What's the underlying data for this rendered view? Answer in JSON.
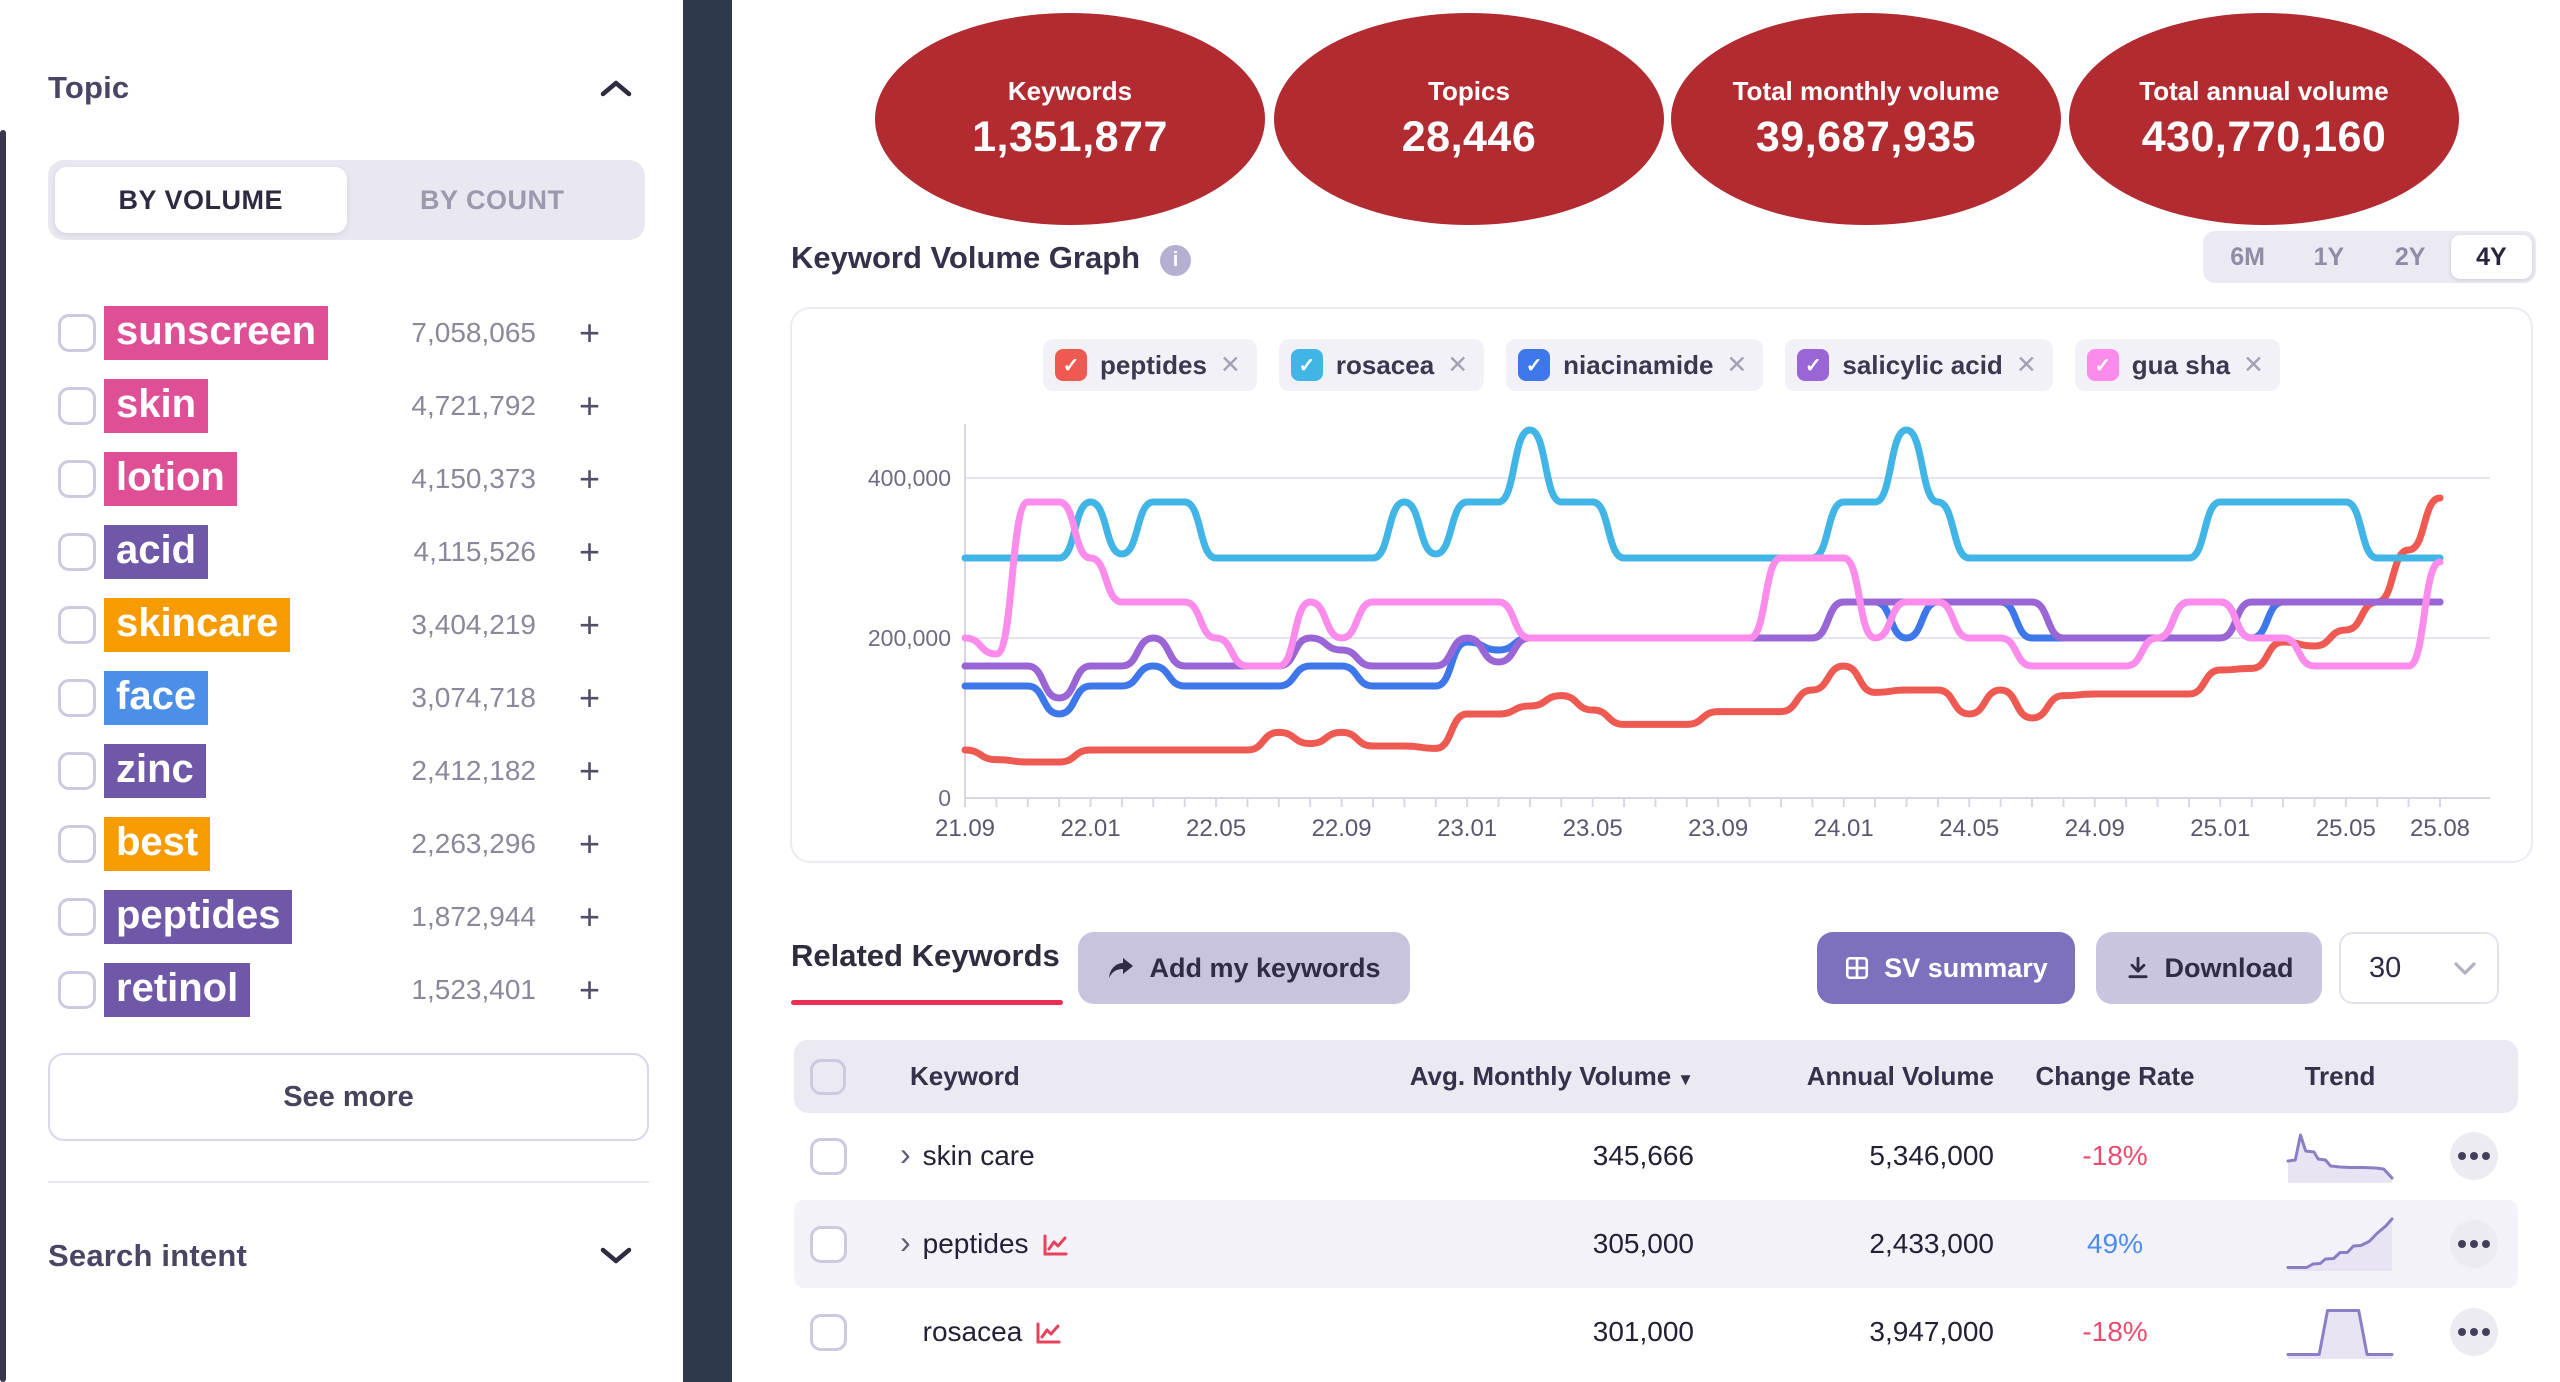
{
  "icons": {
    "check": "✓",
    "close": "✕",
    "plus": "+",
    "sort_desc": "▼",
    "chevron_right": "›",
    "info": "i"
  },
  "sidebar": {
    "topic_title": "Topic",
    "tabs": {
      "by_volume": "BY VOLUME",
      "by_count": "BY COUNT"
    },
    "topics": [
      {
        "label": "sunscreen",
        "value": "7,058,065",
        "color": "#de4f96"
      },
      {
        "label": "skin",
        "value": "4,721,792",
        "color": "#de4f96"
      },
      {
        "label": "lotion",
        "value": "4,150,373",
        "color": "#de4f96"
      },
      {
        "label": "acid",
        "value": "4,115,526",
        "color": "#6f58a8"
      },
      {
        "label": "skincare",
        "value": "3,404,219",
        "color": "#f69c00"
      },
      {
        "label": "face",
        "value": "3,074,718",
        "color": "#4b8fe8"
      },
      {
        "label": "zinc",
        "value": "2,412,182",
        "color": "#6f58a8"
      },
      {
        "label": "best",
        "value": "2,263,296",
        "color": "#f69c00"
      },
      {
        "label": "peptides",
        "value": "1,872,944",
        "color": "#6f58a8"
      },
      {
        "label": "retinol",
        "value": "1,523,401",
        "color": "#6f58a8"
      }
    ],
    "see_more_label": "See more",
    "search_intent_title": "Search intent"
  },
  "stats": [
    {
      "label": "Keywords",
      "value": "1,351,877"
    },
    {
      "label": "Topics",
      "value": "28,446"
    },
    {
      "label": "Total monthly volume",
      "value": "39,687,935"
    },
    {
      "label": "Total annual volume",
      "value": "430,770,160"
    }
  ],
  "graph": {
    "title": "Keyword Volume Graph",
    "ranges": [
      "6M",
      "1Y",
      "2Y",
      "4Y"
    ],
    "active_range": "4Y"
  },
  "chart_data": {
    "type": "line",
    "title": "Keyword Volume Graph",
    "grid": true,
    "legend_position": "top",
    "ylim": [
      0,
      460000
    ],
    "yticks": [
      0,
      200000,
      400000
    ],
    "ytick_labels": [
      "0",
      "200,000",
      "400,000"
    ],
    "x": [
      "21.09",
      "21.10",
      "21.11",
      "21.12",
      "22.01",
      "22.02",
      "22.03",
      "22.04",
      "22.05",
      "22.06",
      "22.07",
      "22.08",
      "22.09",
      "22.10",
      "22.11",
      "22.12",
      "23.01",
      "23.02",
      "23.03",
      "23.04",
      "23.05",
      "23.06",
      "23.07",
      "23.08",
      "23.09",
      "23.10",
      "23.11",
      "23.12",
      "24.01",
      "24.02",
      "24.03",
      "24.04",
      "24.05",
      "24.06",
      "24.07",
      "24.08",
      "24.09",
      "24.10",
      "24.11",
      "24.12",
      "25.01",
      "25.02",
      "25.03",
      "25.04",
      "25.05",
      "25.06",
      "25.07",
      "25.08"
    ],
    "x_tick_indices": [
      0,
      4,
      8,
      12,
      16,
      20,
      24,
      28,
      32,
      36,
      40,
      44,
      47
    ],
    "x_tick_labels": [
      "21.09",
      "22.01",
      "22.05",
      "22.09",
      "23.01",
      "23.05",
      "23.09",
      "24.01",
      "24.05",
      "24.09",
      "25.01",
      "25.05",
      "25.08"
    ],
    "series": [
      {
        "name": "peptides",
        "color": "#ee5a52",
        "values": [
          60000,
          48000,
          45000,
          45000,
          60000,
          60000,
          60000,
          60000,
          60000,
          60000,
          82000,
          68000,
          82000,
          65000,
          65000,
          62000,
          105000,
          105000,
          115000,
          128000,
          110000,
          92000,
          92000,
          92000,
          108000,
          108000,
          108000,
          135000,
          165000,
          132000,
          135000,
          135000,
          105000,
          135000,
          100000,
          128000,
          130000,
          130000,
          130000,
          130000,
          160000,
          162000,
          195000,
          190000,
          210000,
          245000,
          310000,
          375000
        ]
      },
      {
        "name": "rosacea",
        "color": "#41b6e6",
        "values": [
          300000,
          300000,
          300000,
          300000,
          370000,
          305000,
          370000,
          370000,
          300000,
          300000,
          300000,
          300000,
          300000,
          300000,
          370000,
          305000,
          370000,
          370000,
          460000,
          370000,
          370000,
          300000,
          300000,
          300000,
          300000,
          300000,
          300000,
          300000,
          370000,
          370000,
          460000,
          370000,
          300000,
          300000,
          300000,
          300000,
          300000,
          300000,
          300000,
          300000,
          370000,
          370000,
          370000,
          370000,
          370000,
          300000,
          300000,
          300000
        ]
      },
      {
        "name": "niacinamide",
        "color": "#3d77ea",
        "values": [
          140000,
          140000,
          140000,
          105000,
          140000,
          140000,
          165000,
          140000,
          140000,
          140000,
          140000,
          165000,
          165000,
          140000,
          140000,
          140000,
          195000,
          185000,
          200000,
          200000,
          200000,
          200000,
          200000,
          200000,
          200000,
          200000,
          200000,
          200000,
          245000,
          245000,
          200000,
          245000,
          245000,
          245000,
          200000,
          200000,
          200000,
          200000,
          200000,
          245000,
          245000,
          200000,
          245000,
          245000,
          245000,
          245000,
          245000,
          245000
        ]
      },
      {
        "name": "salicylic acid",
        "color": "#9a66d5",
        "values": [
          165000,
          165000,
          165000,
          125000,
          165000,
          165000,
          200000,
          165000,
          165000,
          165000,
          165000,
          200000,
          185000,
          165000,
          165000,
          165000,
          200000,
          170000,
          200000,
          200000,
          200000,
          200000,
          200000,
          200000,
          200000,
          200000,
          200000,
          200000,
          245000,
          245000,
          245000,
          245000,
          245000,
          245000,
          245000,
          200000,
          200000,
          200000,
          200000,
          200000,
          200000,
          245000,
          245000,
          245000,
          245000,
          245000,
          245000,
          245000
        ]
      },
      {
        "name": "gua sha",
        "color": "#fc8cec",
        "values": [
          200000,
          180000,
          370000,
          370000,
          300000,
          245000,
          245000,
          245000,
          200000,
          165000,
          165000,
          245000,
          200000,
          245000,
          245000,
          245000,
          245000,
          245000,
          200000,
          200000,
          200000,
          200000,
          200000,
          200000,
          200000,
          200000,
          300000,
          300000,
          300000,
          200000,
          245000,
          245000,
          200000,
          200000,
          165000,
          165000,
          165000,
          165000,
          200000,
          245000,
          245000,
          200000,
          200000,
          165000,
          165000,
          165000,
          165000,
          295000
        ]
      }
    ]
  },
  "related": {
    "title": "Related Keywords",
    "add_button": "Add my keywords",
    "sv_button": "SV summary",
    "download_button": "Download",
    "page_size": "30",
    "columns": [
      "Keyword",
      "Avg. Monthly Volume",
      "Annual Volume",
      "Change Rate",
      "Trend"
    ],
    "rows": [
      {
        "keyword": "skin care",
        "avg": "345,666",
        "annual": "5,346,000",
        "change": "-18%",
        "change_color": "#ee4b6e",
        "trend_points": [
          [
            0,
            0.4
          ],
          [
            0.07,
            0.42
          ],
          [
            0.12,
            0.92
          ],
          [
            0.17,
            0.6
          ],
          [
            0.25,
            0.58
          ],
          [
            0.29,
            0.44
          ],
          [
            0.36,
            0.42
          ],
          [
            0.41,
            0.3
          ],
          [
            0.5,
            0.28
          ],
          [
            0.6,
            0.27
          ],
          [
            0.72,
            0.27
          ],
          [
            0.84,
            0.26
          ],
          [
            0.92,
            0.24
          ],
          [
            1,
            0.06
          ]
        ]
      },
      {
        "keyword": "peptides",
        "avg": "305,000",
        "annual": "2,433,000",
        "change": "49%",
        "change_color": "#4a8cf0",
        "trend_points": [
          [
            0,
            0.03
          ],
          [
            0.18,
            0.03
          ],
          [
            0.24,
            0.1
          ],
          [
            0.31,
            0.11
          ],
          [
            0.36,
            0.2
          ],
          [
            0.44,
            0.21
          ],
          [
            0.5,
            0.33
          ],
          [
            0.57,
            0.33
          ],
          [
            0.63,
            0.46
          ],
          [
            0.7,
            0.47
          ],
          [
            0.78,
            0.55
          ],
          [
            0.86,
            0.72
          ],
          [
            0.94,
            0.86
          ],
          [
            1,
            1
          ]
        ]
      },
      {
        "keyword": "rosacea",
        "avg": "301,000",
        "annual": "3,947,000",
        "change": "-18%",
        "change_color": "#ee4b6e",
        "trend_points": [
          [
            0,
            0.05
          ],
          [
            0.3,
            0.05
          ],
          [
            0.38,
            0.93
          ],
          [
            0.68,
            0.93
          ],
          [
            0.76,
            0.05
          ],
          [
            1,
            0.05
          ]
        ]
      }
    ]
  }
}
